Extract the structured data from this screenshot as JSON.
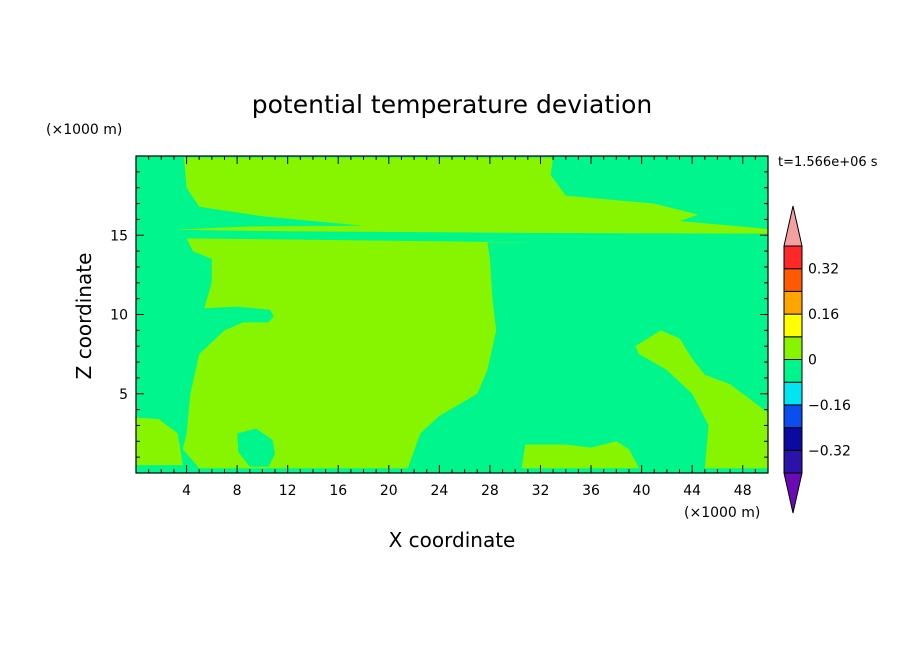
{
  "chart_data": {
    "type": "heatmap",
    "title": "potential temperature deviation",
    "xlabel": "X coordinate",
    "ylabel": "Z coordinate",
    "x_unit": "(×1000 m)",
    "y_unit": "(×1000 m)",
    "time_label": "t=1.566e+06 s",
    "xlim": [
      0,
      50
    ],
    "ylim": [
      0,
      20
    ],
    "x_ticks": [
      4,
      8,
      12,
      16,
      20,
      24,
      28,
      32,
      36,
      40,
      44,
      48
    ],
    "y_ticks": [
      5,
      10,
      15
    ],
    "colorbar": {
      "levels": [
        -0.4,
        -0.32,
        -0.24,
        -0.16,
        -0.08,
        0,
        0.08,
        0.16,
        0.24,
        0.32,
        0.4
      ],
      "tick_labels": [
        {
          "value": 0.32,
          "label": "0.32"
        },
        {
          "value": 0.16,
          "label": "0.16"
        },
        {
          "value": 0,
          "label": "0"
        },
        {
          "value": -0.16,
          "label": "−0.16"
        },
        {
          "value": -0.32,
          "label": "−0.32"
        }
      ],
      "colors": [
        "#6a0ab4",
        "#2c12a8",
        "#0a0aa0",
        "#0a4ef0",
        "#00e6f0",
        "#00f58c",
        "#87f500",
        "#ffff00",
        "#ffa500",
        "#ff5a00",
        "#ff2828",
        "#f5a0a0"
      ],
      "extend": "both"
    },
    "background_level": "#00f58c",
    "regions": [
      {
        "name": "upper-left-positive",
        "color": "#87f500",
        "points": [
          [
            3.8,
            19.9
          ],
          [
            33,
            19.9
          ],
          [
            32.8,
            18.8
          ],
          [
            34,
            17.5
          ],
          [
            41,
            17
          ],
          [
            44.5,
            16.3
          ],
          [
            43,
            15.9
          ],
          [
            50,
            15.4
          ],
          [
            50,
            15.1
          ],
          [
            31,
            15.15
          ],
          [
            12,
            15.25
          ],
          [
            3,
            15.35
          ],
          [
            9,
            15.55
          ],
          [
            18,
            15.6
          ],
          [
            10,
            16.2
          ],
          [
            5,
            16.8
          ],
          [
            4,
            18
          ],
          [
            3.8,
            19.9
          ]
        ]
      },
      {
        "name": "mid-left-positive",
        "color": "#87f500",
        "points": [
          [
            4,
            14.8
          ],
          [
            31.8,
            14.55
          ],
          [
            27.8,
            14.55
          ],
          [
            28,
            13.5
          ],
          [
            28.2,
            11
          ],
          [
            28.5,
            9
          ],
          [
            27.8,
            6.5
          ],
          [
            27,
            5
          ],
          [
            24,
            3.6
          ],
          [
            22.5,
            2.5
          ],
          [
            21.5,
            0.3
          ],
          [
            5,
            0.3
          ],
          [
            3.7,
            1.5
          ],
          [
            4,
            2.5
          ],
          [
            4.3,
            5
          ],
          [
            5,
            7.5
          ],
          [
            7,
            9
          ],
          [
            8,
            10.5
          ],
          [
            5.4,
            10.4
          ],
          [
            6,
            12
          ],
          [
            6,
            13.5
          ],
          [
            4.5,
            14
          ],
          [
            4,
            14.8
          ]
        ]
      },
      {
        "name": "left-edge-positive",
        "color": "#87f500",
        "points": [
          [
            0,
            3.5
          ],
          [
            1.8,
            3.4
          ],
          [
            3.3,
            2.5
          ],
          [
            3.7,
            0.5
          ],
          [
            0,
            0.5
          ]
        ]
      },
      {
        "name": "right-plume-positive",
        "color": "#87f500",
        "points": [
          [
            39.5,
            8
          ],
          [
            41.5,
            9
          ],
          [
            43,
            8.5
          ],
          [
            44,
            7.2
          ],
          [
            45,
            6.2
          ],
          [
            47,
            5.6
          ],
          [
            50,
            3.8
          ],
          [
            50,
            0.3
          ],
          [
            45,
            0.3
          ],
          [
            45.3,
            3
          ],
          [
            44,
            5
          ],
          [
            42,
            6.5
          ],
          [
            39.8,
            7.5
          ]
        ]
      },
      {
        "name": "bottom-strip-positive",
        "color": "#87f500",
        "points": [
          [
            30.5,
            0.3
          ],
          [
            30.8,
            1.8
          ],
          [
            34,
            1.8
          ],
          [
            36,
            1.6
          ],
          [
            38,
            2
          ],
          [
            39,
            1.5
          ],
          [
            39.8,
            0.3
          ]
        ]
      },
      {
        "name": "small-blob-negative",
        "color": "#00f58c",
        "points": [
          [
            8,
            2.5
          ],
          [
            9.5,
            2.8
          ],
          [
            10.8,
            2.1
          ],
          [
            11,
            1.2
          ],
          [
            10.5,
            0.4
          ],
          [
            9,
            0.4
          ],
          [
            8.1,
            1.3
          ]
        ]
      },
      {
        "name": "inner-negative-left",
        "color": "#00f58c",
        "points": [
          [
            8,
            10.5
          ],
          [
            10.6,
            10.3
          ],
          [
            10.9,
            9.9
          ],
          [
            10.5,
            9.5
          ],
          [
            8.5,
            9.5
          ],
          [
            7,
            9
          ]
        ]
      }
    ]
  }
}
